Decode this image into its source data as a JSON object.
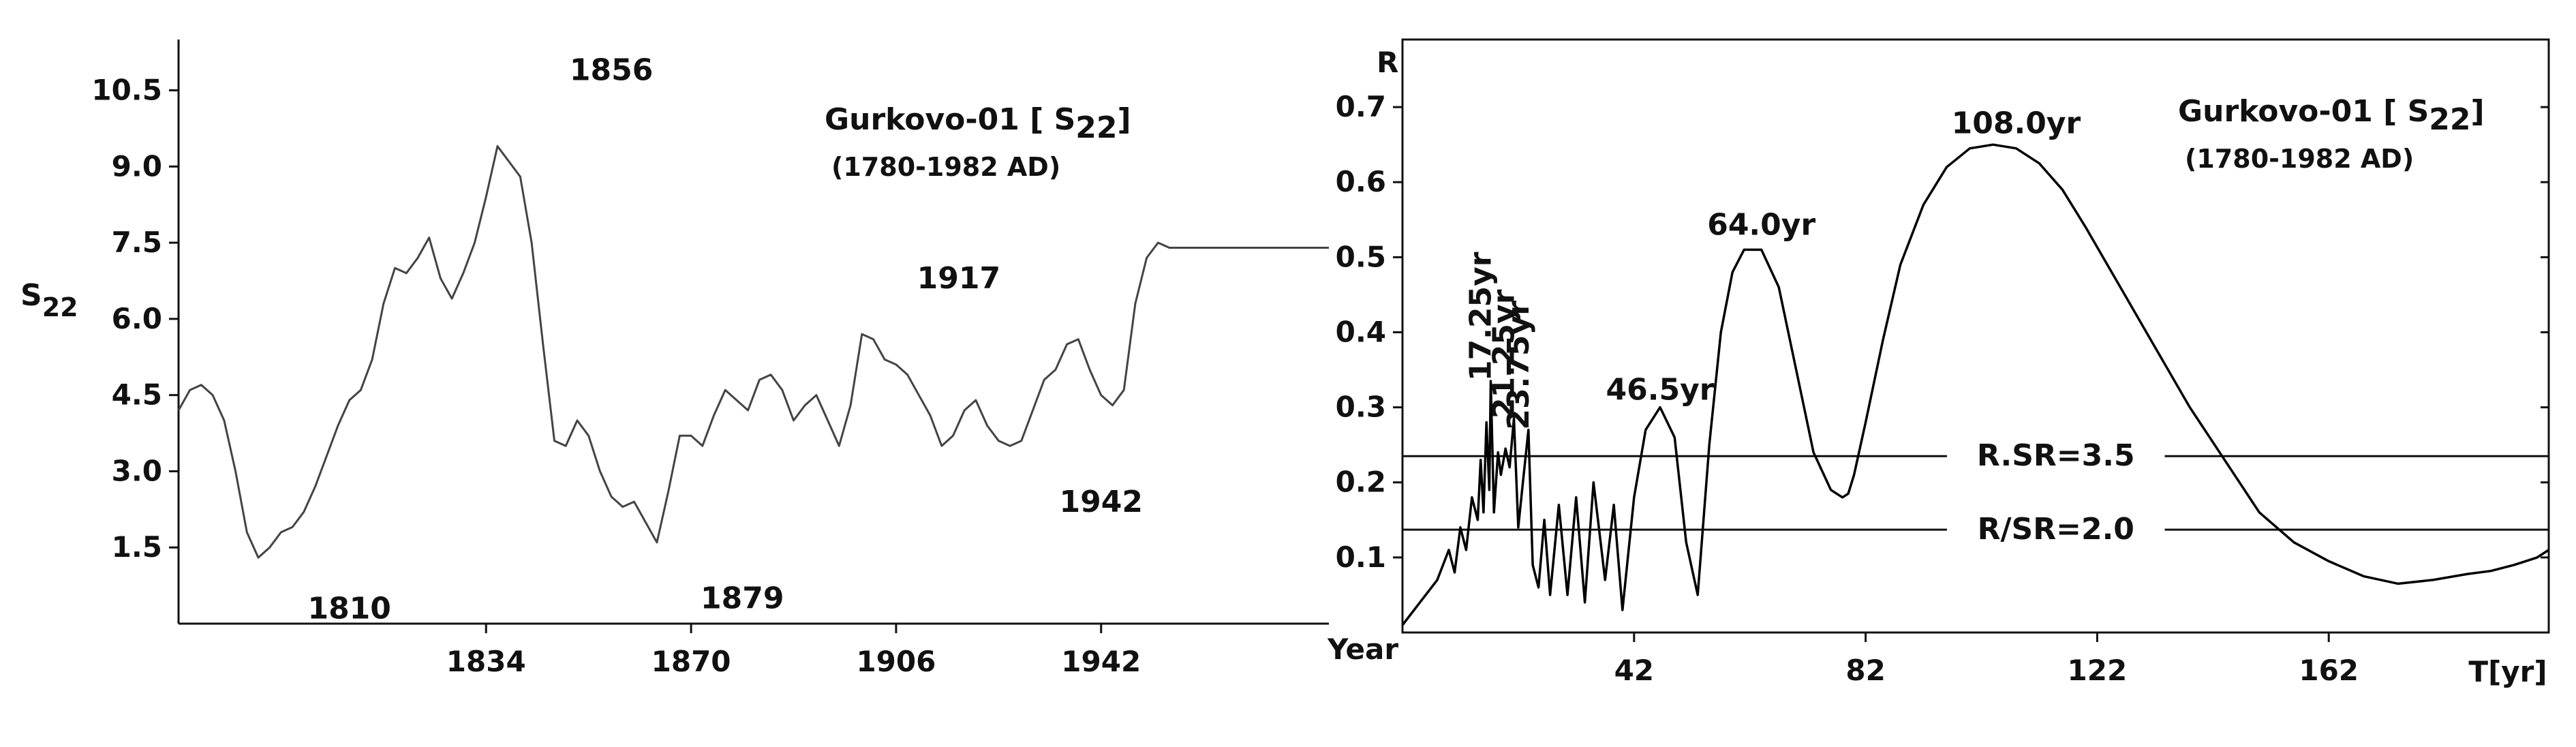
{
  "chart_data": [
    {
      "type": "line",
      "title": "Gurkovo-01 [ S",
      "title_sub": "22",
      "title_close": "]",
      "subtitle": "(1780-1982 AD)",
      "ylabel": "S",
      "ylabel_sub": "22",
      "xlabel": "Year",
      "xlim": [
        1780,
        1982
      ],
      "ylim": [
        0,
        11.5
      ],
      "xticks": [
        1834,
        1870,
        1906,
        1942
      ],
      "yticks": [
        1.5,
        3.0,
        4.5,
        6.0,
        7.5,
        9.0,
        10.5
      ],
      "ytick_labels": [
        "1.5",
        "3.0",
        "4.5",
        "6.0",
        "7.5",
        "9.0",
        "10.5"
      ],
      "grid": false,
      "annotations": [
        {
          "text": "1810",
          "x": 1810,
          "y": 0.1
        },
        {
          "text": "1856",
          "x": 1856,
          "y": 10.7
        },
        {
          "text": "1879",
          "x": 1879,
          "y": 0.3
        },
        {
          "text": "1917",
          "x": 1917,
          "y": 6.6
        },
        {
          "text": "1942",
          "x": 1942,
          "y": 2.2
        }
      ],
      "series": [
        {
          "x": [
            1780,
            1782,
            1784,
            1786,
            1788,
            1790,
            1792,
            1794,
            1796,
            1798,
            1800,
            1802,
            1804,
            1806,
            1808,
            1810,
            1812,
            1814,
            1816,
            1818,
            1820,
            1822,
            1824,
            1826,
            1828,
            1830,
            1832,
            1834,
            1836,
            1838,
            1840,
            1842,
            1844,
            1846,
            1848,
            1850,
            1852,
            1854,
            1856,
            1858,
            1860,
            1862,
            1864,
            1866,
            1868,
            1870,
            1872,
            1874,
            1876,
            1878,
            1880,
            1882,
            1884,
            1886,
            1888,
            1890,
            1892,
            1894,
            1896,
            1898,
            1900,
            1902,
            1904,
            1906,
            1908,
            1910,
            1912,
            1914,
            1916,
            1918,
            1920,
            1922,
            1924,
            1926,
            1928,
            1930,
            1932,
            1934,
            1936,
            1938,
            1940,
            1942,
            1944,
            1946,
            1948,
            1950,
            1952,
            1954,
            1956,
            1958,
            1960,
            1962,
            1964,
            1966,
            1968,
            1970,
            1972,
            1974,
            1976,
            1978,
            1980,
            1982
          ],
          "values": [
            4.2,
            4.6,
            4.7,
            4.5,
            4.0,
            3.0,
            1.8,
            1.3,
            1.5,
            1.8,
            1.9,
            2.2,
            2.7,
            3.3,
            3.9,
            4.4,
            4.6,
            5.2,
            6.3,
            7.0,
            6.9,
            7.2,
            7.6,
            6.8,
            6.4,
            6.9,
            7.5,
            8.4,
            9.4,
            9.1,
            8.8,
            7.5,
            5.5,
            3.6,
            3.5,
            4.0,
            3.7,
            3.0,
            2.5,
            2.3,
            2.4,
            2.0,
            1.6,
            2.6,
            3.7,
            3.7,
            3.5,
            4.1,
            4.6,
            4.4,
            4.2,
            4.8,
            4.9,
            4.6,
            4.0,
            4.3,
            4.5,
            4.0,
            3.5,
            4.3,
            5.7,
            5.6,
            5.2,
            5.1,
            4.9,
            4.5,
            4.1,
            3.5,
            3.7,
            4.2,
            4.4,
            3.9,
            3.6,
            3.5,
            3.6,
            4.2,
            4.8,
            5.0,
            5.5,
            5.6,
            5.0,
            4.5,
            4.3,
            4.6,
            6.3,
            7.2,
            7.5,
            7.4,
            7.4,
            7.4,
            7.4,
            7.4,
            7.4,
            7.4,
            7.4,
            7.4,
            7.4,
            7.4,
            7.4,
            7.4,
            7.4,
            7.4
          ]
        }
      ]
    },
    {
      "type": "line",
      "title": "Gurkovo-01 [ S",
      "title_sub": "22",
      "title_close": "]",
      "subtitle": "(1780-1982 AD)",
      "ylabel": "R",
      "xlabel": "T[yr]",
      "xlim": [
        2,
        200
      ],
      "ylim": [
        0,
        0.79
      ],
      "xticks": [
        42,
        82,
        122,
        162
      ],
      "yticks": [
        0.1,
        0.2,
        0.3,
        0.4,
        0.5,
        0.6,
        0.7
      ],
      "ytick_labels": [
        "0.1",
        "0.2",
        "0.3",
        "0.4",
        "0.5",
        "0.6",
        "0.7"
      ],
      "grid": false,
      "reference_lines": [
        {
          "label": "R.SR=3.5",
          "y": 0.235
        },
        {
          "label": "R/SR=2.0",
          "y": 0.137
        }
      ],
      "annotations": [
        {
          "text": "17.25yr",
          "x": 17.25,
          "y": 0.335,
          "rotate": true
        },
        {
          "text": "21.25yr",
          "x": 21.25,
          "y": 0.285,
          "rotate": true
        },
        {
          "text": "23.75yr",
          "x": 23.75,
          "y": 0.27,
          "rotate": true
        },
        {
          "text": "46.5yr",
          "x": 46.5,
          "y": 0.31
        },
        {
          "text": "64.0yr",
          "x": 64,
          "y": 0.53
        },
        {
          "text": "108.0yr",
          "x": 108,
          "y": 0.665
        }
      ],
      "series": [
        {
          "x": [
            2,
            4,
            6,
            8,
            10,
            11,
            12,
            13,
            14,
            15,
            15.5,
            16,
            16.5,
            17,
            17.25,
            17.8,
            18.5,
            19,
            19.8,
            20.5,
            21.25,
            22,
            22.8,
            23.75,
            24.5,
            25.5,
            26.5,
            27.5,
            29,
            30.5,
            32,
            33.5,
            35,
            37,
            38.5,
            40,
            42,
            44,
            46.5,
            49,
            51,
            53,
            55,
            57,
            59,
            61,
            64,
            67,
            70,
            73,
            76,
            78,
            79,
            80,
            82,
            85,
            88,
            92,
            96,
            100,
            104,
            108,
            112,
            116,
            120,
            126,
            132,
            138,
            144,
            150,
            156,
            162,
            168,
            174,
            180,
            186,
            190,
            194,
            198,
            200
          ],
          "values": [
            0.01,
            0.03,
            0.05,
            0.07,
            0.11,
            0.08,
            0.14,
            0.11,
            0.18,
            0.15,
            0.23,
            0.16,
            0.28,
            0.19,
            0.335,
            0.16,
            0.24,
            0.21,
            0.245,
            0.22,
            0.285,
            0.14,
            0.2,
            0.27,
            0.09,
            0.06,
            0.15,
            0.05,
            0.17,
            0.05,
            0.18,
            0.04,
            0.2,
            0.07,
            0.17,
            0.03,
            0.18,
            0.27,
            0.3,
            0.26,
            0.12,
            0.05,
            0.25,
            0.4,
            0.48,
            0.51,
            0.51,
            0.46,
            0.35,
            0.24,
            0.19,
            0.18,
            0.185,
            0.21,
            0.28,
            0.39,
            0.49,
            0.57,
            0.62,
            0.645,
            0.65,
            0.645,
            0.625,
            0.59,
            0.54,
            0.46,
            0.38,
            0.3,
            0.23,
            0.16,
            0.12,
            0.095,
            0.075,
            0.065,
            0.07,
            0.078,
            0.082,
            0.09,
            0.1,
            0.11
          ]
        }
      ]
    }
  ]
}
